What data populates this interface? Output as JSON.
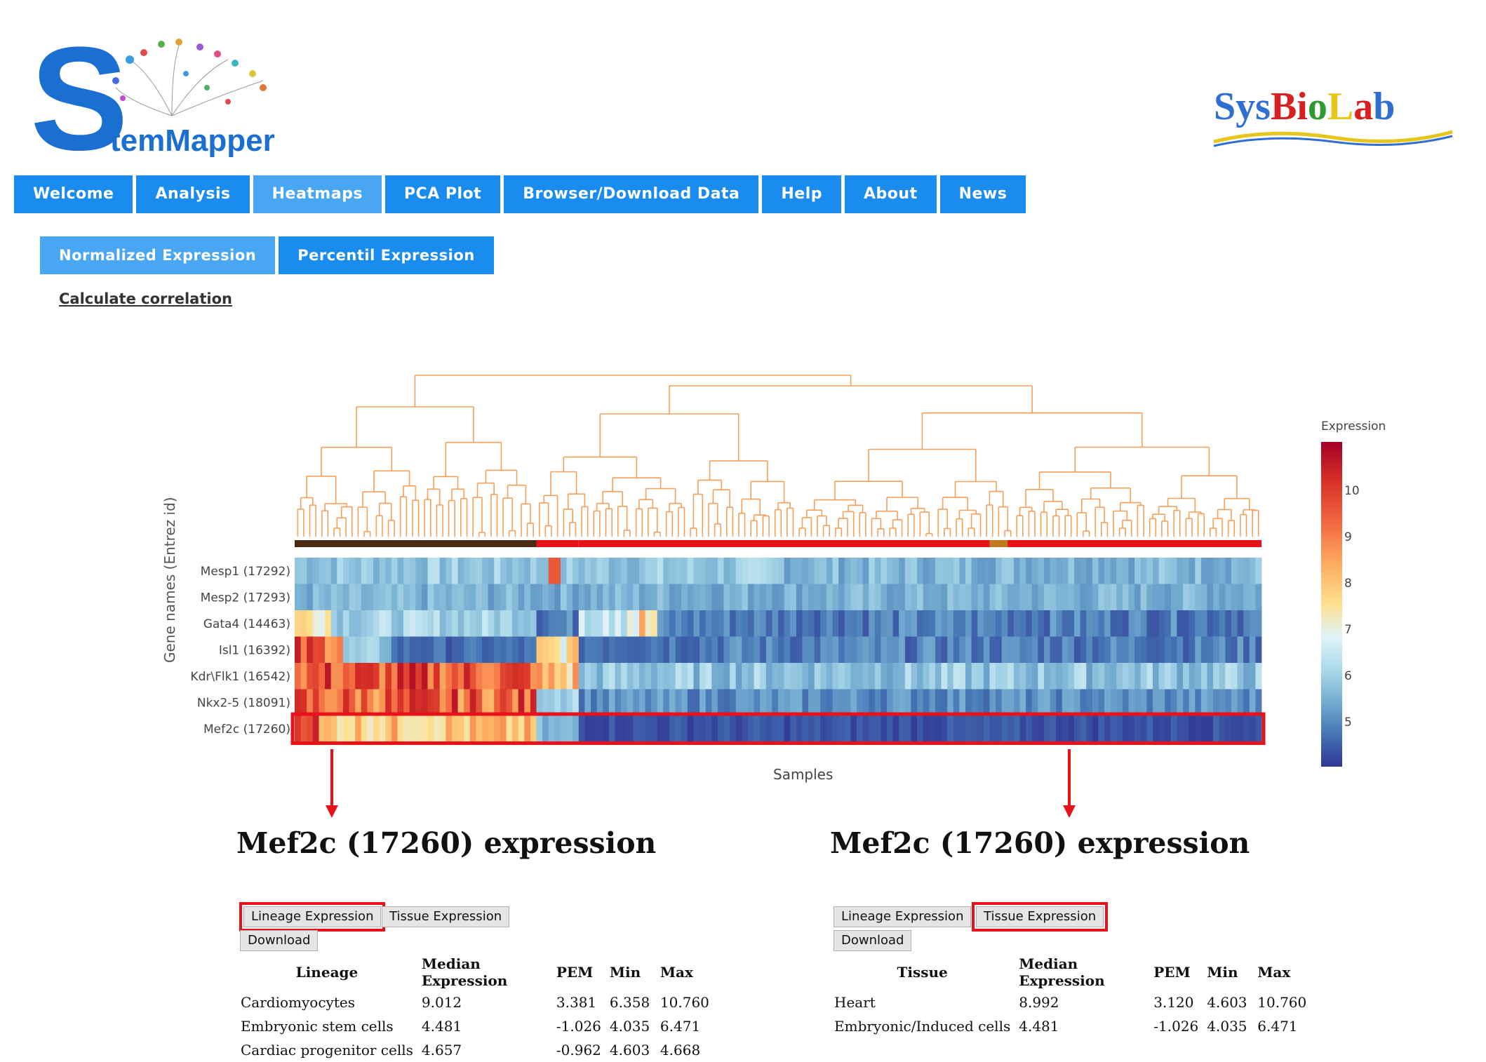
{
  "header": {
    "app_logo_text": "StemMapper",
    "lab_logo_text": "SysBioLab"
  },
  "nav": {
    "items": [
      {
        "label": "Welcome"
      },
      {
        "label": "Analysis"
      },
      {
        "label": "Heatmaps",
        "active": true
      },
      {
        "label": "PCA Plot"
      },
      {
        "label": "Browser/Download Data"
      },
      {
        "label": "Help"
      },
      {
        "label": "About"
      },
      {
        "label": "News"
      }
    ]
  },
  "subnav": {
    "items": [
      {
        "label": "Normalized Expression",
        "active": true
      },
      {
        "label": "Percentil Expression"
      }
    ]
  },
  "calc_link": "Calculate correlation",
  "heatmap": {
    "x_label": "Samples",
    "y_label": "Gene names (Entrez id)",
    "genes": [
      "Mesp1 (17292)",
      "Mesp2 (17293)",
      "Gata4 (14463)",
      "Isl1 (16392)",
      "Kdr\\Flk1 (16542)",
      "Nkx2-5 (18091)",
      "Mef2c (17260)"
    ],
    "highlighted_gene": "Mef2c (17260)",
    "colors": {
      "dendrogram": "#f5a05a",
      "highlight": "#e8131a",
      "lineage_bar_brown": "#4a2a12",
      "lineage_bar_red": "#e8131a"
    },
    "legend": {
      "title": "Expression",
      "ticks": [
        "10",
        "9",
        "8",
        "7",
        "6",
        "5"
      ],
      "range": [
        4.4,
        11
      ]
    }
  },
  "panels": [
    {
      "title": "Mef2c (17260) expression",
      "buttons": {
        "lineage": "Lineage Expression",
        "tissue": "Tissue Expression",
        "download": "Download"
      },
      "selected": "lineage",
      "columns": [
        "Lineage",
        "Median Expression",
        "PEM",
        "Min",
        "Max"
      ],
      "rows": [
        [
          "Cardiomyocytes",
          "9.012",
          "3.381",
          "6.358",
          "10.760"
        ],
        [
          "Embryonic stem cells",
          "4.481",
          "-1.026",
          "4.035",
          "6.471"
        ],
        [
          "Cardiac progenitor cells",
          "4.657",
          "-0.962",
          "4.603",
          "4.668"
        ]
      ]
    },
    {
      "title": "Mef2c (17260) expression",
      "buttons": {
        "lineage": "Lineage Expression",
        "tissue": "Tissue Expression",
        "download": "Download"
      },
      "selected": "tissue",
      "columns": [
        "Tissue",
        "Median Expression",
        "PEM",
        "Min",
        "Max"
      ],
      "rows": [
        [
          "Heart",
          "8.992",
          "3.120",
          "4.603",
          "10.760"
        ],
        [
          "Embryonic/Induced cells",
          "4.481",
          "-1.026",
          "4.035",
          "6.471"
        ]
      ]
    }
  ]
}
